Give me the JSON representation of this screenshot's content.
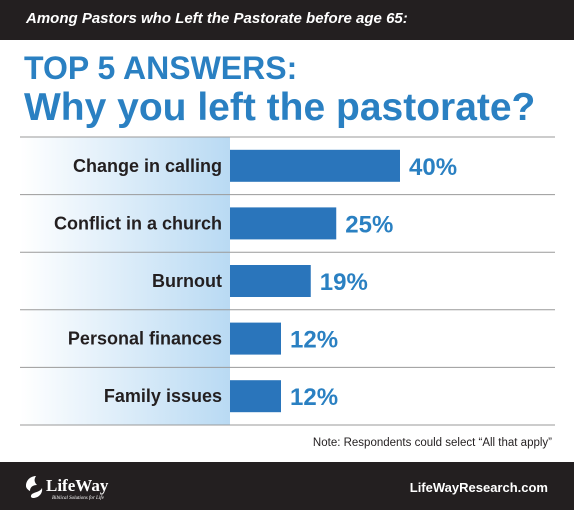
{
  "header": {
    "kicker": "Among Pastors who Left the Pastorate before age 65:",
    "title_line1": "TOP 5 ANSWERS:",
    "title_line2": "Why you left the pastorate?"
  },
  "chart_data": {
    "type": "bar",
    "orientation": "horizontal",
    "categories": [
      "Change in calling",
      "Conflict in a church",
      "Burnout",
      "Personal finances",
      "Family issues"
    ],
    "values": [
      40,
      25,
      19,
      12,
      12
    ],
    "value_labels": [
      "40%",
      "25%",
      "19%",
      "12%",
      "12%"
    ],
    "unit": "%",
    "xlim": [
      0,
      40
    ],
    "grid": false,
    "colors": {
      "bar": "#2a75bb",
      "value_text": "#2a80c2",
      "label_text": "#231f20",
      "row_line": "#9a9a9a",
      "gradient_left": "#ffffff",
      "gradient_right": "#b9daf3"
    }
  },
  "footer": {
    "note": "Note: Respondents could select “All that apply”",
    "logo_text": "LifeWay",
    "logo_tagline": "Biblical Solutions for Life",
    "website": "LifeWayResearch.com"
  },
  "colors": {
    "band": "#231f20",
    "accent": "#2a80c2"
  }
}
